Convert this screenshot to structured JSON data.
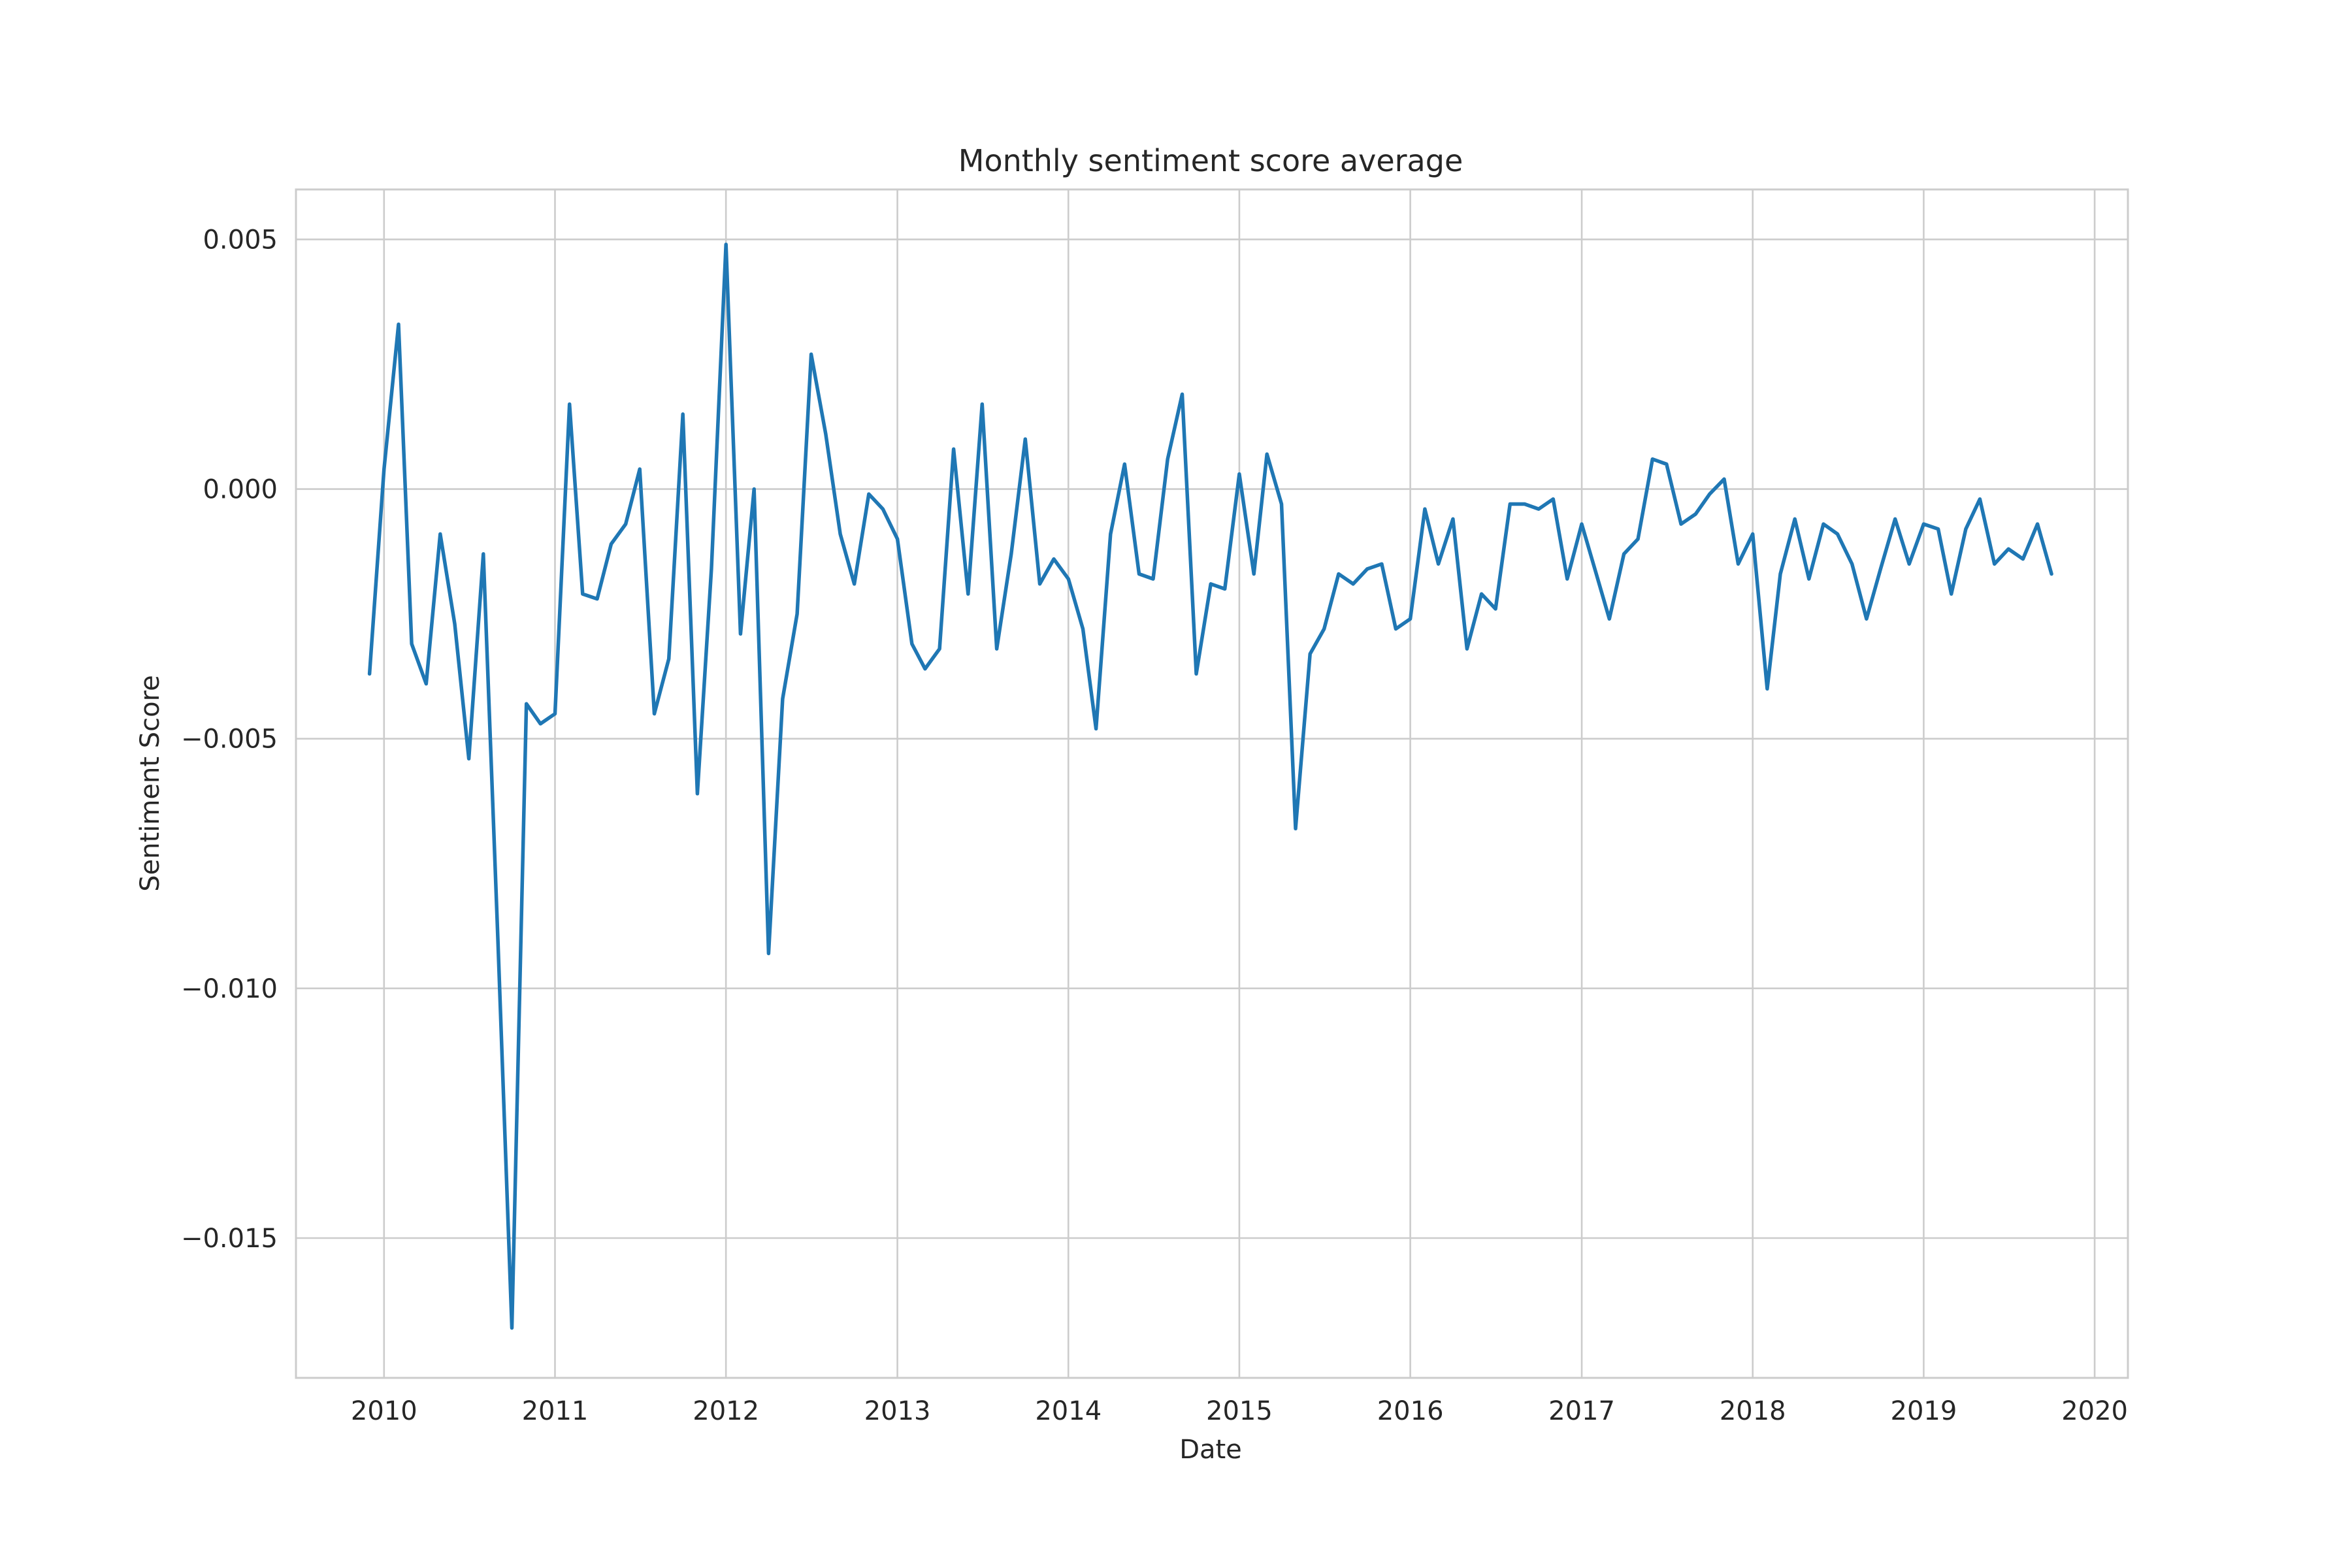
{
  "chart_data": {
    "type": "line",
    "title": "Monthly sentiment score average",
    "xlabel": "Date",
    "ylabel": "Sentiment Score",
    "xlim": [
      "2009-06-27",
      "2020-03-12"
    ],
    "ylim": [
      -0.0178,
      0.006
    ],
    "x_ticks": [
      {
        "value": "2010-01-01",
        "label": "2010"
      },
      {
        "value": "2011-01-01",
        "label": "2011"
      },
      {
        "value": "2012-01-01",
        "label": "2012"
      },
      {
        "value": "2013-01-01",
        "label": "2013"
      },
      {
        "value": "2014-01-01",
        "label": "2014"
      },
      {
        "value": "2015-01-01",
        "label": "2015"
      },
      {
        "value": "2016-01-01",
        "label": "2016"
      },
      {
        "value": "2017-01-01",
        "label": "2017"
      },
      {
        "value": "2018-01-01",
        "label": "2018"
      },
      {
        "value": "2019-01-01",
        "label": "2019"
      },
      {
        "value": "2020-01-01",
        "label": "2020"
      }
    ],
    "y_ticks": [
      {
        "value": 0.005,
        "label": "0.005"
      },
      {
        "value": 0.0,
        "label": "0.000"
      },
      {
        "value": -0.005,
        "label": "−0.005"
      },
      {
        "value": -0.01,
        "label": "−0.010"
      },
      {
        "value": -0.015,
        "label": "−0.015"
      }
    ],
    "grid": true,
    "color": "#1f77b4",
    "series": [
      {
        "x": [
          "2009-12",
          "2010-01",
          "2010-02",
          "2010-03",
          "2010-04",
          "2010-05",
          "2010-06",
          "2010-07",
          "2010-08",
          "2010-09",
          "2010-10",
          "2010-11",
          "2010-12",
          "2011-01",
          "2011-02",
          "2011-03",
          "2011-04",
          "2011-05",
          "2011-06",
          "2011-07",
          "2011-08",
          "2011-09",
          "2011-10",
          "2011-11",
          "2011-12",
          "2012-01",
          "2012-02",
          "2012-03",
          "2012-04",
          "2012-05",
          "2012-06",
          "2012-07",
          "2012-08",
          "2012-09",
          "2012-10",
          "2012-11",
          "2012-12",
          "2013-01",
          "2013-02",
          "2013-03",
          "2013-04",
          "2013-05",
          "2013-06",
          "2013-07",
          "2013-08",
          "2013-09",
          "2013-10",
          "2013-11",
          "2013-12",
          "2014-01",
          "2014-02",
          "2014-03",
          "2014-04",
          "2014-05",
          "2014-06",
          "2014-07",
          "2014-08",
          "2014-09",
          "2014-10",
          "2014-11",
          "2014-12",
          "2015-01",
          "2015-02",
          "2015-03",
          "2015-04",
          "2015-05",
          "2015-06",
          "2015-07",
          "2015-08",
          "2015-09",
          "2015-10",
          "2015-11",
          "2015-12",
          "2016-01",
          "2016-02",
          "2016-03",
          "2016-04",
          "2016-05",
          "2016-06",
          "2016-07",
          "2016-08",
          "2016-09",
          "2016-10",
          "2016-11",
          "2016-12",
          "2017-01",
          "2017-02",
          "2017-03",
          "2017-04",
          "2017-05",
          "2017-06",
          "2017-07",
          "2017-08",
          "2017-09",
          "2017-10",
          "2017-11",
          "2017-12",
          "2018-01",
          "2018-02",
          "2018-03",
          "2018-04",
          "2018-05",
          "2018-06",
          "2018-07",
          "2018-08",
          "2018-09",
          "2018-10",
          "2018-11",
          "2018-12",
          "2019-01",
          "2019-02",
          "2019-03",
          "2019-04",
          "2019-05",
          "2019-06",
          "2019-07",
          "2019-08",
          "2019-09",
          "2019-10"
        ],
        "values": [
          -0.0037,
          0.0004,
          0.0033,
          -0.0031,
          -0.0039,
          -0.0009,
          -0.0027,
          -0.0054,
          -0.0013,
          -0.009,
          -0.0168,
          -0.0043,
          -0.0047,
          -0.0045,
          0.0017,
          -0.0021,
          -0.0022,
          -0.0011,
          -0.0007,
          0.0004,
          -0.0045,
          -0.0034,
          0.0015,
          -0.0061,
          -0.0016,
          0.0049,
          -0.0029,
          0.0,
          -0.0093,
          -0.0042,
          -0.0025,
          0.0027,
          0.0011,
          -0.0009,
          -0.0019,
          -0.0001,
          -0.0004,
          -0.001,
          -0.0031,
          -0.0036,
          -0.0032,
          0.0008,
          -0.0021,
          0.0017,
          -0.0032,
          -0.0013,
          0.001,
          -0.0019,
          -0.0014,
          -0.0018,
          -0.0028,
          -0.0048,
          -0.0009,
          0.0005,
          -0.0017,
          -0.0018,
          0.0006,
          0.0019,
          -0.0037,
          -0.0019,
          -0.002,
          0.0003,
          -0.0017,
          0.0007,
          -0.0003,
          -0.0068,
          -0.0033,
          -0.0028,
          -0.0017,
          -0.0019,
          -0.0016,
          -0.0015,
          -0.0028,
          -0.0026,
          -0.0004,
          -0.0015,
          -0.0006,
          -0.0032,
          -0.0021,
          -0.0024,
          -0.0003,
          -0.0003,
          -0.0004,
          -0.0002,
          -0.0018,
          -0.0007,
          -0.0017,
          -0.0026,
          -0.0013,
          -0.001,
          0.0006,
          0.0005,
          -0.0007,
          -0.0005,
          -0.0001,
          0.0002,
          -0.0015,
          -0.0009,
          -0.004,
          -0.0017,
          -0.0006,
          -0.0018,
          -0.0007,
          -0.0009,
          -0.0015,
          -0.0026,
          -0.0016,
          -0.0006,
          -0.0015,
          -0.0007,
          -0.0008,
          -0.0021,
          -0.0008,
          -0.0002,
          -0.0015,
          -0.0012,
          -0.0014,
          -0.0007,
          -0.0017
        ]
      }
    ]
  }
}
